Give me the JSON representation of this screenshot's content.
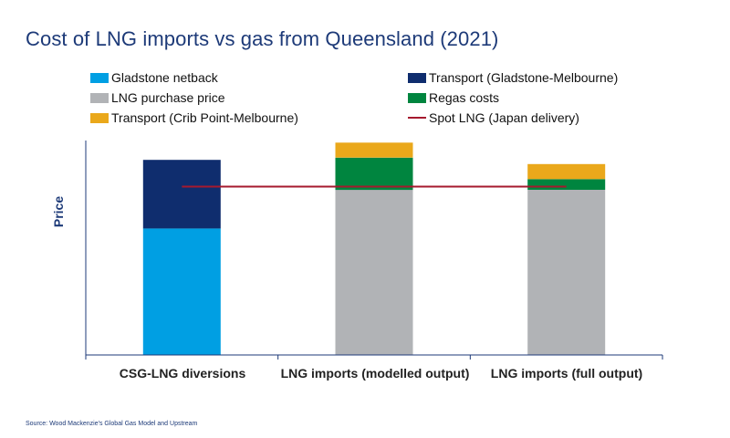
{
  "title": "Cost of LNG imports vs gas from Queensland (2021)",
  "source": "Source: Wood Mackenzie's Global Gas Model and Upstream",
  "legend": [
    {
      "label": "Gladstone netback",
      "color": "#009fe3",
      "kind": "box"
    },
    {
      "label": "Transport (Gladstone-Melbourne)",
      "color": "#0f2d6e",
      "kind": "box"
    },
    {
      "label": "LNG purchase price",
      "color": "#b1b3b6",
      "kind": "box"
    },
    {
      "label": "Regas costs",
      "color": "#00853f",
      "kind": "box"
    },
    {
      "label": "Transport (Crib Point-Melbourne)",
      "color": "#eaa81b",
      "kind": "box"
    },
    {
      "label": "Spot LNG (Japan delivery)",
      "color": "#a6192e",
      "kind": "line"
    }
  ],
  "chart_data": {
    "type": "bar",
    "stacked": true,
    "title": "Cost of LNG imports vs gas from Queensland (2021)",
    "xlabel": "",
    "ylabel": "Price",
    "ylim": [
      0,
      100
    ],
    "y_units": "relative (axis unlabelled)",
    "categories": [
      "CSG-LNG diversions",
      "LNG imports (modelled output)",
      "LNG imports (full output)"
    ],
    "series": [
      {
        "name": "Gladstone netback",
        "color": "#009fe3",
        "values": [
          59,
          0,
          0
        ]
      },
      {
        "name": "Transport (Gladstone-Melbourne)",
        "color": "#0f2d6e",
        "values": [
          32,
          0,
          0
        ]
      },
      {
        "name": "LNG purchase price",
        "color": "#b1b3b6",
        "values": [
          0,
          77,
          77
        ]
      },
      {
        "name": "Regas costs",
        "color": "#00853f",
        "values": [
          0,
          15,
          5
        ]
      },
      {
        "name": "Transport (Crib Point-Melbourne)",
        "color": "#eaa81b",
        "values": [
          0,
          7,
          7
        ]
      }
    ],
    "reference_line": {
      "name": "Spot LNG (Japan delivery)",
      "color": "#a6192e",
      "value": 78.5
    },
    "grid": false,
    "legend_position": "top"
  }
}
